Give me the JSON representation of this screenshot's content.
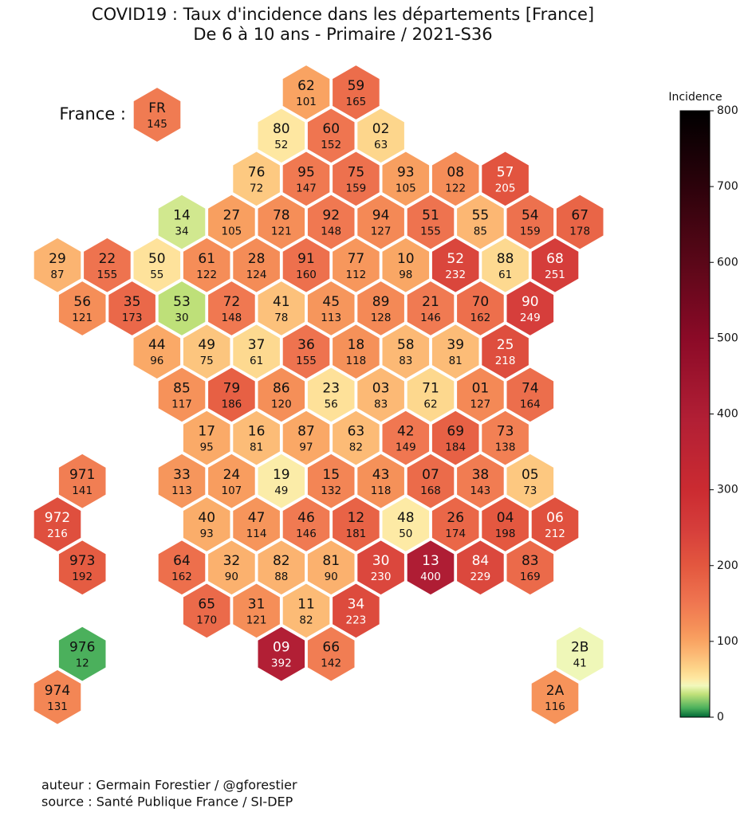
{
  "title": "COVID19 : Taux d'incidence dans les départements [France]",
  "subtitle": "De 6 à 10 ans - Primaire / 2021-S36",
  "france": {
    "label": "France :",
    "code": "FR",
    "value": 145
  },
  "departments": [
    {
      "code": "62",
      "value": 101
    },
    {
      "code": "59",
      "value": 165
    },
    {
      "code": "80",
      "value": 52
    },
    {
      "code": "60",
      "value": 152
    },
    {
      "code": "02",
      "value": 63
    },
    {
      "code": "76",
      "value": 72
    },
    {
      "code": "95",
      "value": 147
    },
    {
      "code": "75",
      "value": 159
    },
    {
      "code": "93",
      "value": 105
    },
    {
      "code": "08",
      "value": 122
    },
    {
      "code": "57",
      "value": 205
    },
    {
      "code": "14",
      "value": 34
    },
    {
      "code": "27",
      "value": 105
    },
    {
      "code": "78",
      "value": 121
    },
    {
      "code": "92",
      "value": 148
    },
    {
      "code": "94",
      "value": 127
    },
    {
      "code": "51",
      "value": 155
    },
    {
      "code": "55",
      "value": 85
    },
    {
      "code": "54",
      "value": 159
    },
    {
      "code": "67",
      "value": 178
    },
    {
      "code": "29",
      "value": 87
    },
    {
      "code": "22",
      "value": 155
    },
    {
      "code": "50",
      "value": 55
    },
    {
      "code": "61",
      "value": 122
    },
    {
      "code": "28",
      "value": 124
    },
    {
      "code": "91",
      "value": 160
    },
    {
      "code": "77",
      "value": 112
    },
    {
      "code": "10",
      "value": 98
    },
    {
      "code": "52",
      "value": 232
    },
    {
      "code": "88",
      "value": 61
    },
    {
      "code": "68",
      "value": 251
    },
    {
      "code": "56",
      "value": 121
    },
    {
      "code": "35",
      "value": 173
    },
    {
      "code": "53",
      "value": 30
    },
    {
      "code": "72",
      "value": 148
    },
    {
      "code": "41",
      "value": 78
    },
    {
      "code": "45",
      "value": 113
    },
    {
      "code": "89",
      "value": 128
    },
    {
      "code": "21",
      "value": 146
    },
    {
      "code": "70",
      "value": 162
    },
    {
      "code": "90",
      "value": 249
    },
    {
      "code": "44",
      "value": 96
    },
    {
      "code": "49",
      "value": 75
    },
    {
      "code": "37",
      "value": 61
    },
    {
      "code": "36",
      "value": 155
    },
    {
      "code": "18",
      "value": 118
    },
    {
      "code": "58",
      "value": 83
    },
    {
      "code": "39",
      "value": 81
    },
    {
      "code": "25",
      "value": 218
    },
    {
      "code": "85",
      "value": 117
    },
    {
      "code": "79",
      "value": 186
    },
    {
      "code": "86",
      "value": 120
    },
    {
      "code": "23",
      "value": 56
    },
    {
      "code": "03",
      "value": 83
    },
    {
      "code": "71",
      "value": 62
    },
    {
      "code": "01",
      "value": 127
    },
    {
      "code": "74",
      "value": 164
    },
    {
      "code": "17",
      "value": 95
    },
    {
      "code": "16",
      "value": 81
    },
    {
      "code": "87",
      "value": 97
    },
    {
      "code": "63",
      "value": 82
    },
    {
      "code": "42",
      "value": 149
    },
    {
      "code": "69",
      "value": 184
    },
    {
      "code": "73",
      "value": 138
    },
    {
      "code": "971",
      "value": 141
    },
    {
      "code": "33",
      "value": 113
    },
    {
      "code": "24",
      "value": 107
    },
    {
      "code": "19",
      "value": 49
    },
    {
      "code": "15",
      "value": 132
    },
    {
      "code": "43",
      "value": 118
    },
    {
      "code": "07",
      "value": 168
    },
    {
      "code": "38",
      "value": 143
    },
    {
      "code": "05",
      "value": 73
    },
    {
      "code": "972",
      "value": 216
    },
    {
      "code": "40",
      "value": 93
    },
    {
      "code": "47",
      "value": 114
    },
    {
      "code": "46",
      "value": 146
    },
    {
      "code": "12",
      "value": 181
    },
    {
      "code": "48",
      "value": 50
    },
    {
      "code": "26",
      "value": 174
    },
    {
      "code": "04",
      "value": 198
    },
    {
      "code": "06",
      "value": 212
    },
    {
      "code": "973",
      "value": 192
    },
    {
      "code": "64",
      "value": 162
    },
    {
      "code": "32",
      "value": 90
    },
    {
      "code": "82",
      "value": 88
    },
    {
      "code": "81",
      "value": 90
    },
    {
      "code": "30",
      "value": 230
    },
    {
      "code": "13",
      "value": 400
    },
    {
      "code": "84",
      "value": 229
    },
    {
      "code": "83",
      "value": 169
    },
    {
      "code": "65",
      "value": 170
    },
    {
      "code": "31",
      "value": 121
    },
    {
      "code": "11",
      "value": 82
    },
    {
      "code": "34",
      "value": 223
    },
    {
      "code": "976",
      "value": 12
    },
    {
      "code": "09",
      "value": 392
    },
    {
      "code": "66",
      "value": 142
    },
    {
      "code": "2B",
      "value": 41
    },
    {
      "code": "974",
      "value": 131
    },
    {
      "code": "2A",
      "value": 116
    }
  ],
  "colorbar": {
    "label": "Incidence",
    "lim": [
      0,
      800
    ],
    "ticks": [
      0,
      100,
      200,
      300,
      400,
      500,
      600,
      700,
      800
    ]
  },
  "footer": [
    "auteur : Germain Forestier / @gforestier",
    "source : Santé Publique France / SI-DEP"
  ]
}
